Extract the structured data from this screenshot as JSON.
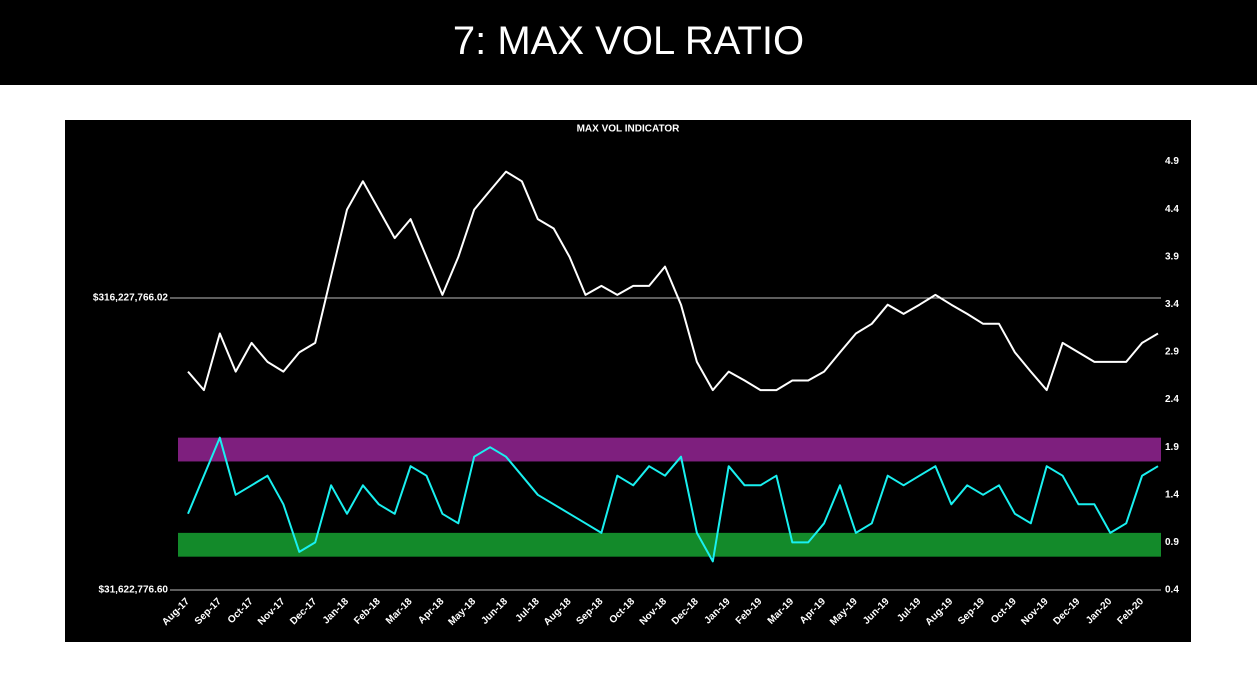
{
  "slide_title": "7: MAX VOL RATIO",
  "chart_data": {
    "type": "line",
    "title": "MAX VOL INDICATOR",
    "categories": [
      "Aug-17",
      null,
      "Sep-17",
      null,
      "Oct-17",
      null,
      "Nov-17",
      null,
      "Dec-17",
      null,
      "Jan-18",
      null,
      "Feb-18",
      null,
      "Mar-18",
      null,
      "Apr-18",
      null,
      "May-18",
      null,
      "Jun-18",
      null,
      "Jul-18",
      null,
      "Aug-18",
      null,
      "Sep-18",
      null,
      "Oct-18",
      null,
      "Nov-18",
      null,
      "Dec-18",
      null,
      "Jan-19",
      null,
      "Feb-19",
      null,
      "Mar-19",
      null,
      "Apr-19",
      null,
      "May-19",
      null,
      "Jun-19",
      null,
      "Jul-19",
      null,
      "Aug-19",
      null,
      "Sep-19",
      null,
      "Oct-19",
      null,
      "Nov-19",
      null,
      "Dec-19",
      null,
      "Jan-20",
      null,
      "Feb-20",
      null
    ],
    "series": [
      {
        "color": "#ffffff",
        "axis": "y",
        "values": [
          177000000,
          153000000,
          239000000,
          177000000,
          222000000,
          191000000,
          177000000,
          206000000,
          222000000,
          376000000,
          635000000,
          794000000,
          635000000,
          507000000,
          589000000,
          437000000,
          324000000,
          437000000,
          635000000,
          738000000,
          857000000,
          794000000,
          589000000,
          547000000,
          437000000,
          324000000,
          348000000,
          324000000,
          348000000,
          348000000,
          405000000,
          300000000,
          191000000,
          153000000,
          177000000,
          165000000,
          153000000,
          153000000,
          165000000,
          165000000,
          177000000,
          206000000,
          239000000,
          258000000,
          300000000,
          279000000,
          300000000,
          324000000,
          300000000,
          279000000,
          258000000,
          258000000,
          206000000,
          177000000,
          153000000,
          222000000,
          206000000,
          191000000,
          191000000,
          191000000,
          222000000,
          239000000
        ]
      },
      {
        "color": "#19f0f0",
        "axis": "y2",
        "values": [
          1.2,
          1.6,
          2.0,
          1.4,
          1.5,
          1.6,
          1.3,
          0.8,
          0.9,
          1.5,
          1.2,
          1.5,
          1.3,
          1.2,
          1.7,
          1.6,
          1.2,
          1.1,
          1.8,
          1.9,
          1.8,
          1.6,
          1.4,
          1.3,
          1.2,
          1.1,
          1.0,
          1.6,
          1.5,
          1.7,
          1.6,
          1.8,
          1.0,
          0.7,
          1.7,
          1.5,
          1.5,
          1.6,
          0.9,
          0.9,
          1.1,
          1.5,
          1.0,
          1.1,
          1.6,
          1.5,
          1.6,
          1.7,
          1.3,
          1.5,
          1.4,
          1.5,
          1.2,
          1.1,
          1.7,
          1.6,
          1.3,
          1.3,
          1.0,
          1.1,
          1.6,
          1.7
        ]
      }
    ],
    "bands": [
      {
        "axis": "y2",
        "from": 1.75,
        "to": 2.0,
        "color": "#7e1f7e"
      },
      {
        "axis": "y2",
        "from": 0.75,
        "to": 1.0,
        "color": "#138a2a"
      }
    ],
    "ylog": true,
    "ylim": [
      31622776.6,
      1000000000
    ],
    "yticks": [
      {
        "value": 316227766.02,
        "label": "$316,227,766.02"
      },
      {
        "value": 31622776.6,
        "label": "$31,622,776.60"
      }
    ],
    "y2lim": [
      0.4,
      5.0
    ],
    "y2ticks": [
      0.4,
      0.9,
      1.4,
      1.9,
      2.4,
      2.9,
      3.4,
      3.9,
      4.4,
      4.9
    ],
    "grid": true
  }
}
